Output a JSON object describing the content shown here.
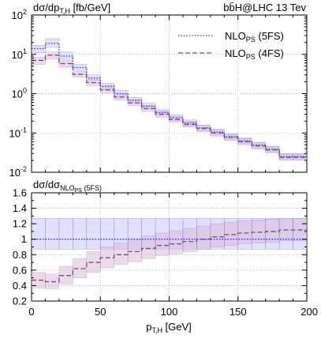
{
  "chart_data": [
    {
      "type": "line",
      "panel": "main",
      "ylabel_main": "dσ/dp",
      "ylabel_sub": "T,H",
      "ylabel_unit": " [fb/GeV]",
      "process_label": "bb̄H@LHC 13 Tev",
      "xlim": [
        0,
        200
      ],
      "ylim": [
        0.01,
        100
      ],
      "log_y": true,
      "grid": true,
      "legend_position": "top-right",
      "yticks": [
        0.01,
        0.1,
        1,
        10,
        100
      ],
      "ytick_labels": [
        {
          "base": "10",
          "exp": "-2"
        },
        {
          "base": "10",
          "exp": "-1"
        },
        {
          "base": "10",
          "exp": "0"
        },
        {
          "base": "10",
          "exp": "1"
        },
        {
          "base": "10",
          "exp": "2"
        }
      ],
      "bin_edges": [
        0,
        10,
        20,
        30,
        40,
        50,
        60,
        70,
        80,
        90,
        100,
        110,
        120,
        130,
        140,
        150,
        160,
        170,
        180,
        190,
        200
      ],
      "series": [
        {
          "name_main": "NLO",
          "name_sub": "PS",
          "name_suffix": " (5FS)",
          "color": "#3030e0",
          "dash": "dotted",
          "band_color": "#c8c8ff",
          "values": [
            14,
            19,
            9.0,
            4.6,
            2.5,
            1.55,
            1.0,
            0.68,
            0.48,
            0.33,
            0.245,
            0.18,
            0.135,
            0.105,
            0.08,
            0.063,
            0.049,
            0.039,
            0.025,
            0.025
          ],
          "band_low": [
            11,
            15,
            7.5,
            3.9,
            2.1,
            1.3,
            0.85,
            0.58,
            0.4,
            0.28,
            0.205,
            0.15,
            0.115,
            0.088,
            0.068,
            0.053,
            0.041,
            0.033,
            0.021,
            0.021
          ],
          "band_high": [
            17,
            25,
            11.5,
            5.6,
            3.0,
            1.85,
            1.2,
            0.8,
            0.57,
            0.39,
            0.29,
            0.215,
            0.16,
            0.125,
            0.095,
            0.075,
            0.058,
            0.046,
            0.03,
            0.03
          ]
        },
        {
          "name_main": "NLO",
          "name_sub": "PS",
          "name_suffix": " (4FS)",
          "color": "#7a4a7a",
          "dash": "dashed",
          "band_color": "#d9bcd9",
          "values": [
            7.0,
            9.5,
            5.8,
            3.1,
            1.9,
            1.25,
            0.82,
            0.58,
            0.42,
            0.3,
            0.22,
            0.165,
            0.13,
            0.1,
            0.077,
            0.06,
            0.047,
            0.037,
            0.024,
            0.024
          ],
          "band_low": [
            5.5,
            7.5,
            4.7,
            2.6,
            1.6,
            1.05,
            0.69,
            0.49,
            0.35,
            0.25,
            0.185,
            0.14,
            0.108,
            0.083,
            0.064,
            0.05,
            0.039,
            0.031,
            0.02,
            0.02
          ],
          "band_high": [
            8.5,
            11.5,
            7.0,
            3.7,
            2.3,
            1.5,
            0.98,
            0.69,
            0.5,
            0.36,
            0.26,
            0.2,
            0.155,
            0.12,
            0.092,
            0.072,
            0.056,
            0.045,
            0.029,
            0.029
          ]
        }
      ]
    },
    {
      "type": "line",
      "panel": "ratio",
      "ylabel_main": "dσ/dσ",
      "ylabel_sub": "NLO",
      "ylabel_subsub": "PS",
      "ylabel_suffix": " (5FS)",
      "xlabel_main": "p",
      "xlabel_sub": "T,H",
      "xlabel_unit": " [GeV]",
      "xlim": [
        0,
        200
      ],
      "ylim": [
        0.2,
        1.6
      ],
      "grid": true,
      "xticks": [
        0,
        50,
        100,
        150,
        200
      ],
      "xtick_labels": [
        "0",
        "50",
        "100",
        "150",
        "200"
      ],
      "yticks": [
        0.2,
        0.4,
        0.6,
        0.8,
        1.0,
        1.2,
        1.4,
        1.6
      ],
      "ytick_labels": [
        "0.2",
        "0.4",
        "0.6",
        "0.8",
        "1",
        "1.2",
        "1.4",
        "1.6"
      ],
      "bin_edges": [
        0,
        10,
        20,
        30,
        40,
        50,
        60,
        70,
        80,
        90,
        100,
        110,
        120,
        130,
        140,
        150,
        160,
        170,
        180,
        190,
        200
      ],
      "series": [
        {
          "name": "5FS",
          "color": "#3030e0",
          "dash": "dotted",
          "band_color": "#c8c8ff",
          "values": [
            1,
            1,
            1,
            1,
            1,
            1,
            1,
            1,
            1,
            1,
            1,
            1,
            1,
            1,
            1,
            1,
            1,
            1,
            1,
            1
          ],
          "band_low": [
            0.87,
            0.87,
            0.87,
            0.87,
            0.87,
            0.87,
            0.87,
            0.87,
            0.87,
            0.87,
            0.87,
            0.87,
            0.87,
            0.87,
            0.87,
            0.87,
            0.87,
            0.87,
            0.87,
            0.87
          ],
          "band_high": [
            1.27,
            1.27,
            1.27,
            1.27,
            1.27,
            1.27,
            1.27,
            1.27,
            1.27,
            1.27,
            1.27,
            1.27,
            1.27,
            1.27,
            1.27,
            1.27,
            1.27,
            1.27,
            1.27,
            1.27
          ]
        },
        {
          "name": "4FS",
          "color": "#7a4a7a",
          "dash": "dashed",
          "band_color": "#d9bcd9",
          "values": [
            0.47,
            0.45,
            0.53,
            0.62,
            0.7,
            0.76,
            0.8,
            0.84,
            0.88,
            0.92,
            0.94,
            0.97,
            1.0,
            1.03,
            1.06,
            1.08,
            1.09,
            1.1,
            1.12,
            1.12
          ],
          "band_low": [
            0.37,
            0.36,
            0.42,
            0.5,
            0.57,
            0.63,
            0.67,
            0.71,
            0.75,
            0.79,
            0.81,
            0.84,
            0.87,
            0.9,
            0.92,
            0.94,
            0.95,
            0.96,
            0.98,
            0.98
          ],
          "band_high": [
            0.57,
            0.55,
            0.65,
            0.75,
            0.84,
            0.9,
            0.95,
            1.0,
            1.04,
            1.08,
            1.11,
            1.14,
            1.17,
            1.2,
            1.22,
            1.24,
            1.25,
            1.26,
            1.27,
            1.27
          ]
        }
      ]
    }
  ]
}
